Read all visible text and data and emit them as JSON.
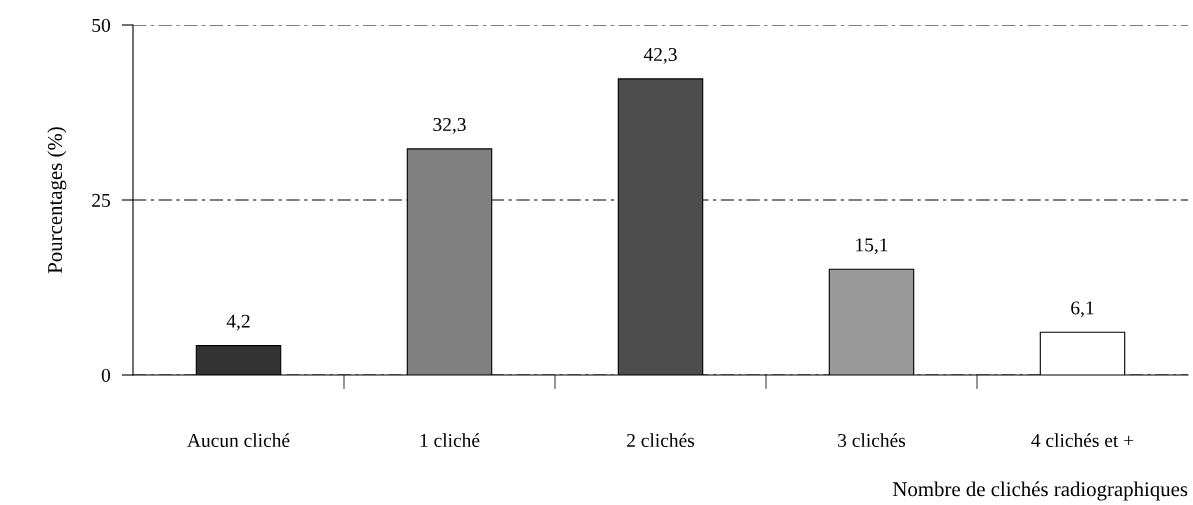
{
  "chart_data": {
    "type": "bar",
    "categories": [
      "Aucun cliché",
      "1 cliché",
      "2 clichés",
      "3 clichés",
      "4 clichés et +"
    ],
    "values": [
      4.2,
      32.3,
      42.3,
      15.1,
      6.1
    ],
    "colors": [
      "#333333",
      "#808080",
      "#4d4d4d",
      "#999999",
      "#ffffff"
    ],
    "value_labels": [
      "4,2",
      "32,3",
      "42,3",
      "15,1",
      "6,1"
    ],
    "xlabel": "Nombre de clichés radiographiques",
    "ylabel": "Pourcentages (%)",
    "ylim": [
      0,
      50
    ],
    "yticks": [
      0,
      25,
      50
    ],
    "grid": "y"
  }
}
